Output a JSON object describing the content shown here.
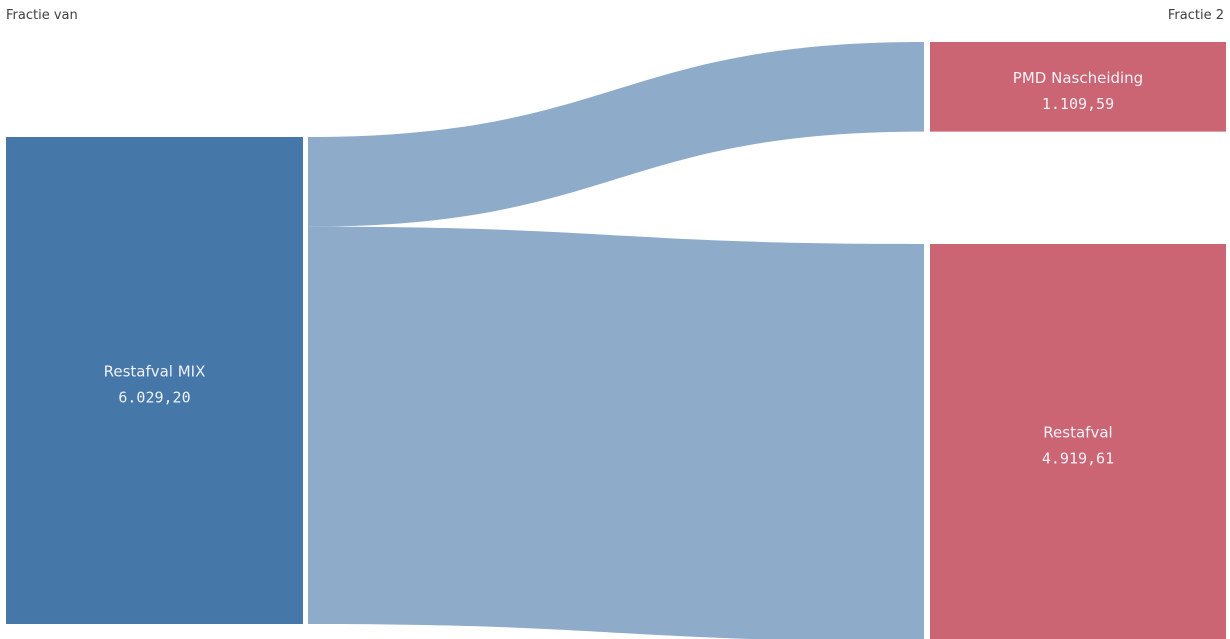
{
  "chart_data": {
    "type": "sankey",
    "columns": [
      "Fractie van",
      "Fractie 2"
    ],
    "source_nodes": [
      {
        "name": "Restafval MIX",
        "value_label": "6.029,20",
        "value": 6029.2
      }
    ],
    "target_nodes": [
      {
        "name": "PMD Nascheiding",
        "value_label": "1.109,59",
        "value": 1109.59
      },
      {
        "name": "Restafval",
        "value_label": "4.919,61",
        "value": 4919.61
      }
    ],
    "links": [
      {
        "source": "Restafval MIX",
        "target": "PMD Nascheiding",
        "value": 1109.59
      },
      {
        "source": "Restafval MIX",
        "target": "Restafval",
        "value": 4919.61
      }
    ],
    "colors": {
      "source_node": "#4677a9",
      "link": "#8eabca",
      "target_node": "#cb6574",
      "node_text": "#eef1f5"
    }
  }
}
